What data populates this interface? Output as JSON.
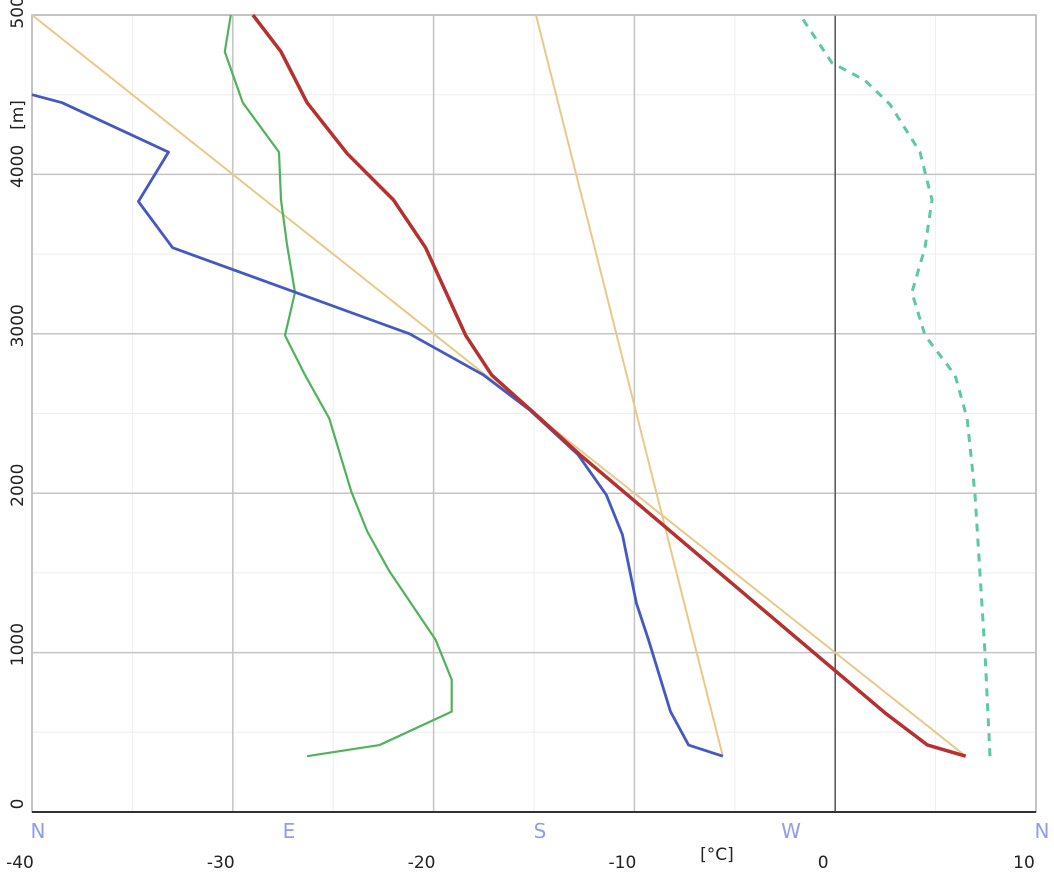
{
  "chart_data": {
    "type": "line",
    "x_label": "[°C]",
    "y_label": "[m]",
    "xlim": [
      -40,
      10
    ],
    "xticks": [
      -40,
      -30,
      -20,
      -10,
      0,
      10
    ],
    "xminorticks": [
      -35,
      -25,
      -15,
      -5,
      5
    ],
    "ylim": [
      0,
      5000
    ],
    "yticks": [
      0,
      1000,
      2000,
      3000,
      4000,
      5000
    ],
    "yminorticks": [
      500,
      1500,
      2500,
      3500,
      4500
    ],
    "x2lim": [
      0,
      360
    ],
    "x2ticks": [
      {
        "value": 0,
        "label": "N"
      },
      {
        "value": 90,
        "label": "E"
      },
      {
        "value": 180,
        "label": "S"
      },
      {
        "value": 270,
        "label": "W"
      },
      {
        "value": 360,
        "label": "N"
      }
    ],
    "zero_line": 0,
    "grid": true,
    "series": [
      {
        "color": "#e8c98a",
        "width": 2,
        "x": [
          6.5,
          -40
        ],
        "y": [
          350,
          5000
        ]
      },
      {
        "color": "#e8c98a",
        "width": 2,
        "x": [
          -5.6,
          -14.9
        ],
        "y": [
          350,
          5000
        ]
      },
      {
        "color": "#4fb35a",
        "width": 2.2,
        "x": [
          -26.3,
          -22.7,
          -19.1,
          -19.1,
          -19.9,
          -22.2,
          -23.3,
          -24.1,
          -25.2,
          -26.4,
          -27.4,
          -26.9,
          -27.3,
          -27.6,
          -27.7,
          -29.5,
          -30.4,
          -30.1
        ],
        "y": [
          350,
          420,
          630,
          830,
          1080,
          1510,
          1760,
          2010,
          2470,
          2740,
          2990,
          3260,
          3560,
          3840,
          4140,
          4450,
          4770,
          5000
        ]
      },
      {
        "color": "#4458c4",
        "width": 2.8,
        "x": [
          -5.6,
          -7.3,
          -8.2,
          -9.3,
          -9.9,
          -10.6,
          -11.4,
          -12.8,
          -15.2,
          -17.5,
          -21.2,
          -33.0,
          -34.7,
          -33.2,
          -38.5,
          -40.0
        ],
        "y": [
          350,
          420,
          630,
          1080,
          1310,
          1740,
          1990,
          2240,
          2520,
          2740,
          3000,
          3540,
          3830,
          4140,
          4450,
          4500
        ]
      },
      {
        "color": "#b5302f",
        "width": 3.5,
        "x": [
          6.5,
          4.6,
          2.5,
          -12.7,
          -14.7,
          -17.1,
          -18.4,
          -20.4,
          -22.0,
          -24.3,
          -26.3,
          -27.6,
          -29.0
        ],
        "y": [
          350,
          420,
          620,
          2240,
          2470,
          2740,
          2990,
          3540,
          3840,
          4130,
          4450,
          4770,
          5000
        ]
      },
      {
        "color": "#5cc8a8",
        "width": 3,
        "dashed": true,
        "axis": "x2",
        "x": [
          343.5,
          341.7,
          338.1,
          335.3,
          331,
          320.2,
          315.5,
          320.2,
          322.7,
          318.4,
          307.6,
          298.7,
          286.8,
          275.4
        ],
        "y": [
          350,
          1000,
          2000,
          2470,
          2740,
          2990,
          3260,
          3540,
          3840,
          4140,
          4440,
          4590,
          4700,
          5000
        ]
      }
    ]
  }
}
